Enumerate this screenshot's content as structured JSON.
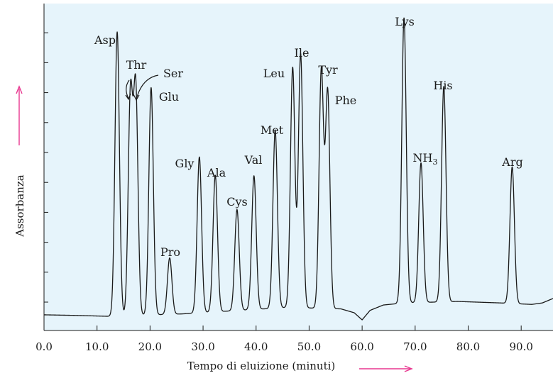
{
  "chart_data": {
    "type": "line",
    "title": "",
    "xlabel": "Tempo di eluizione (minuti)",
    "ylabel": "Assorbanza",
    "xlim": [
      0,
      96
    ],
    "ylim": [
      0,
      1
    ],
    "x_ticks": [
      0,
      10,
      20,
      30,
      40,
      50,
      60,
      70,
      80,
      90
    ],
    "x_tick_labels": [
      "0.0",
      "10.0",
      "20.0",
      "30.0",
      "40.0",
      "50.0",
      "60.0",
      "70.0",
      "80.0",
      "90.0"
    ],
    "grid": false,
    "colors": {
      "plot_background": "#e6f4fb",
      "trace": "#1a1a1a",
      "axis_arrow": "#e8368f"
    },
    "baseline_series": [
      {
        "x": 0,
        "y": 0.005
      },
      {
        "x": 6,
        "y": 0.003
      },
      {
        "x": 12,
        "y": 0.0
      },
      {
        "x": 26,
        "y": 0.008
      },
      {
        "x": 46,
        "y": 0.03
      },
      {
        "x": 56,
        "y": 0.025
      },
      {
        "x": 58.5,
        "y": 0.012
      },
      {
        "x": 60,
        "y": -0.012
      },
      {
        "x": 61.5,
        "y": 0.02
      },
      {
        "x": 64,
        "y": 0.038
      },
      {
        "x": 68,
        "y": 0.045
      },
      {
        "x": 78,
        "y": 0.05
      },
      {
        "x": 86,
        "y": 0.045
      },
      {
        "x": 92,
        "y": 0.04
      },
      {
        "x": 94,
        "y": 0.045
      },
      {
        "x": 96,
        "y": 0.06
      }
    ],
    "peaks": [
      {
        "name": "Asp",
        "label": "Asp",
        "x": 13.8,
        "height": 0.956
      },
      {
        "name": "Thr",
        "label": "Thr",
        "x": 16.3,
        "height": 0.74
      },
      {
        "name": "Ser",
        "label": "Ser",
        "x": 17.3,
        "height": 0.76
      },
      {
        "name": "Glu",
        "label": "Glu",
        "x": 20.2,
        "height": 0.765
      },
      {
        "name": "Pro",
        "label": "Pro",
        "x": 23.7,
        "height": 0.19
      },
      {
        "name": "Gly",
        "label": "Gly",
        "x": 29.3,
        "height": 0.525
      },
      {
        "name": "Ala",
        "label": "Ala",
        "x": 32.3,
        "height": 0.46
      },
      {
        "name": "Cys",
        "label": "Cys",
        "x": 36.4,
        "height": 0.34
      },
      {
        "name": "Val",
        "label": "Val",
        "x": 39.6,
        "height": 0.45
      },
      {
        "name": "Met",
        "label": "Met",
        "x": 43.6,
        "height": 0.6
      },
      {
        "name": "Leu",
        "label": "Leu",
        "x": 46.9,
        "height": 0.808
      },
      {
        "name": "Ile",
        "label": "Ile",
        "x": 48.4,
        "height": 0.855
      },
      {
        "name": "Tyr",
        "label": "Tyr",
        "x": 52.3,
        "height": 0.8
      },
      {
        "name": "Phe",
        "label": "Phe",
        "x": 53.5,
        "height": 0.73
      },
      {
        "name": "Lys",
        "label": "Lys",
        "x": 67.9,
        "height": 0.96
      },
      {
        "name": "NH3",
        "label": "NH",
        "label_sub": "3",
        "x": 71.1,
        "height": 0.47
      },
      {
        "name": "His",
        "label": "His",
        "x": 75.4,
        "height": 0.725
      },
      {
        "name": "Arg",
        "label": "Arg",
        "x": 88.3,
        "height": 0.46
      }
    ]
  }
}
